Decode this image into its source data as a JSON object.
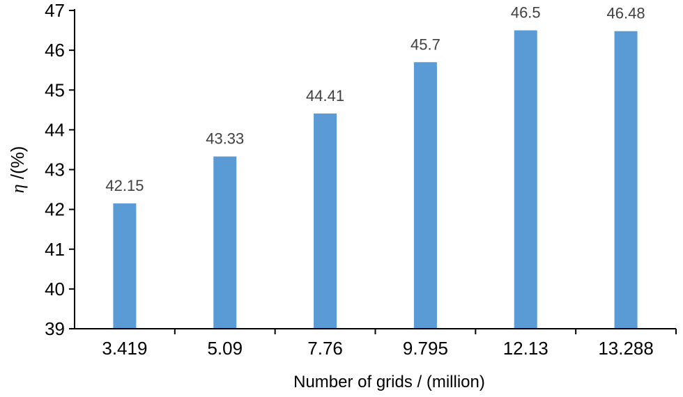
{
  "chart_data": {
    "type": "bar",
    "categories": [
      "3.419",
      "5.09",
      "7.76",
      "9.795",
      "12.13",
      "13.288"
    ],
    "series": [
      {
        "values": [
          42.15,
          43.33,
          44.41,
          45.7,
          46.5,
          46.48
        ]
      }
    ],
    "data_labels": [
      "42.15",
      "43.33",
      "44.41",
      "45.7",
      "46.5",
      "46.48"
    ],
    "xlabel": "Number of grids / (million)",
    "ylabel_symbol": "η",
    "ylabel_rest": " /(%)",
    "ylim": [
      39,
      47
    ],
    "yticks": [
      "39",
      "40",
      "41",
      "42",
      "43",
      "44",
      "45",
      "46",
      "47"
    ],
    "grid": false,
    "legend": "none",
    "bar_color": "#5b9bd5",
    "label_color": "#404040",
    "axis_color": "#000000"
  }
}
